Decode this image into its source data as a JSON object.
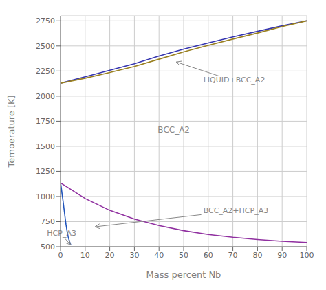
{
  "chart_data": {
    "type": "line",
    "xlabel": "Mass percent Nb",
    "ylabel": "Temperature [K]",
    "xlim": [
      0,
      100
    ],
    "ylim": [
      500,
      2800
    ],
    "xticks": [
      0,
      10,
      20,
      30,
      40,
      50,
      60,
      70,
      80,
      90,
      100
    ],
    "yticks": [
      500,
      750,
      1000,
      1250,
      1500,
      1750,
      2000,
      2250,
      2500,
      2750
    ],
    "grid": true,
    "series": [
      {
        "color": "#3535b0",
        "x": [
          0,
          10,
          20,
          30,
          40,
          50,
          60,
          70,
          80,
          90,
          100
        ],
        "values": [
          2128,
          2193,
          2258,
          2323,
          2400,
          2468,
          2530,
          2590,
          2645,
          2700,
          2750
        ]
      },
      {
        "color": "#9a8020",
        "x": [
          0,
          10,
          20,
          30,
          40,
          50,
          60,
          70,
          80,
          90,
          100
        ],
        "values": [
          2128,
          2178,
          2235,
          2295,
          2368,
          2440,
          2505,
          2568,
          2628,
          2692,
          2750
        ]
      },
      {
        "color": "#9030a0",
        "x": [
          0,
          10,
          20,
          30,
          40,
          50,
          60,
          70,
          80,
          90,
          100
        ],
        "values": [
          1136,
          980,
          862,
          775,
          710,
          660,
          622,
          594,
          572,
          555,
          543
        ]
      },
      {
        "color": "#2255bb",
        "x": [
          0.0,
          0.3,
          0.6,
          1.0,
          1.4,
          1.8,
          2.2,
          2.7,
          3.1,
          3.5,
          3.9,
          4.2
        ],
        "values": [
          1136,
          1090,
          1030,
          960,
          880,
          800,
          725,
          650,
          600,
          565,
          535,
          515
        ]
      }
    ],
    "annotations": [
      {
        "text": "BCC_A2",
        "x": 46,
        "y": 1660,
        "color": "#888888"
      },
      {
        "text": "LIQUID+BCC_A2",
        "x": 58,
        "y": 2155,
        "arrow_x": 47,
        "arrow_y": 2340,
        "color": "#888888"
      },
      {
        "text": "BCC_A2+HCP_A3",
        "x": 58,
        "y": 855,
        "arrow_x": 14,
        "arrow_y": 698,
        "color": "#888888"
      },
      {
        "text": "HCP_A3",
        "x": -5.5,
        "y": 728,
        "arrow_x": 4.1,
        "arrow_y": 518,
        "color": "#888888"
      }
    ]
  }
}
